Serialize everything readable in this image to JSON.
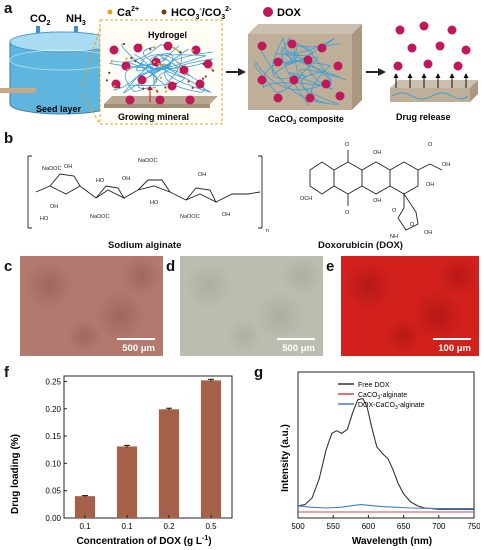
{
  "panel_a": {
    "letter": "a",
    "gas_co2": "CO",
    "gas_co2_sub": "2",
    "gas_nh3": "NH",
    "gas_nh3_sub": "3",
    "legend_ca": "Ca",
    "legend_ca_sup": "2+",
    "legend_hco3": "HCO",
    "legend_hco3_sub": "3",
    "legend_hco3_sup": "-",
    "legend_co3": "/CO",
    "legend_co3_sub": "3",
    "legend_co3_sup": "2-",
    "legend_dox": "DOX",
    "seed_layer": "Seed layer",
    "hydrogel": "Hydrogel",
    "growing_mineral": "Growing mineral",
    "composite": "CaCO",
    "composite_sub": "3",
    "composite_rest": " composite",
    "drug_release": "Drug release",
    "colors": {
      "dox": "#c0185a",
      "ca": "#e8a020",
      "hco3": "#7a3a10",
      "mineral": "#b8a690",
      "fiber": "#3aa0d8",
      "water": "#6fc3e6"
    }
  },
  "panel_b": {
    "letter": "b",
    "alginate_label": "Sodium alginate",
    "dox_label": "Doxorubicin (DOX)",
    "alg_groups": [
      "NaOOC",
      "OH",
      "NaOOC",
      "OH",
      "HO",
      "OH",
      "HO",
      "OH",
      "NaOOC",
      "HO",
      "NaOOC",
      "OH",
      "n"
    ],
    "dox_groups": [
      "O",
      "OH",
      "O",
      "OH",
      "OCH",
      "O",
      "OH",
      "O",
      "OH",
      "O",
      "NH",
      "OH"
    ]
  },
  "panel_c": {
    "letter": "c",
    "scale": "500 μm",
    "color": "#b27a6e"
  },
  "panel_d": {
    "letter": "d",
    "scale": "500 μm",
    "color": "#bcbcb0"
  },
  "panel_e": {
    "letter": "e",
    "scale": "100 μm",
    "color": "#d2201c"
  },
  "panel_f": {
    "letter": "f",
    "chart_data": {
      "type": "bar",
      "categories": [
        "0.1",
        "0.1",
        "0.2",
        "0.5"
      ],
      "values": [
        0.04,
        0.131,
        0.199,
        0.252
      ],
      "errors": [
        0.001,
        0.002,
        0.002,
        0.002
      ],
      "xlabel": "Concentration of DOX (g L",
      "xlabel_sup": "-1",
      "xlabel_end": ")",
      "ylabel": "Drug loading (%)",
      "ylim": [
        0,
        0.26
      ],
      "yticks": [
        "0.00",
        "0.05",
        "0.10",
        "0.15",
        "0.20",
        "0.25"
      ],
      "bar_color": "#a5604a"
    }
  },
  "panel_g": {
    "letter": "g",
    "chart_data": {
      "type": "line",
      "xlabel": "Wavelength (nm)",
      "ylabel": "Intensity (a.u.)",
      "xlim": [
        500,
        750
      ],
      "xticks": [
        "500",
        "550",
        "600",
        "650",
        "700",
        "750"
      ],
      "series": [
        {
          "name": "Free DOX",
          "color": "#333333",
          "x": [
            500,
            510,
            520,
            530,
            540,
            548,
            555,
            562,
            570,
            578,
            585,
            592,
            598,
            605,
            612,
            620,
            628,
            635,
            642,
            650,
            660,
            670,
            680,
            690,
            700,
            720,
            750
          ],
          "y": [
            0.06,
            0.07,
            0.12,
            0.26,
            0.48,
            0.6,
            0.62,
            0.6,
            0.63,
            0.76,
            0.85,
            0.86,
            0.8,
            0.64,
            0.5,
            0.45,
            0.41,
            0.33,
            0.23,
            0.15,
            0.09,
            0.06,
            0.045,
            0.04,
            0.035,
            0.035,
            0.035
          ]
        },
        {
          "name": "CaCO",
          "name_sub": "3",
          "name_end": "-alginate",
          "color": "#e04040",
          "x": [
            500,
            750
          ],
          "y": [
            0.015,
            0.015
          ]
        },
        {
          "name": "DOX-CaCO",
          "name_sub": "3",
          "name_end": "-alginate",
          "color": "#3a7fd0",
          "x": [
            500,
            520,
            540,
            560,
            580,
            590,
            600,
            620,
            640,
            660,
            700,
            750
          ],
          "y": [
            0.06,
            0.05,
            0.045,
            0.05,
            0.065,
            0.07,
            0.065,
            0.055,
            0.05,
            0.045,
            0.04,
            0.04
          ]
        }
      ]
    }
  }
}
